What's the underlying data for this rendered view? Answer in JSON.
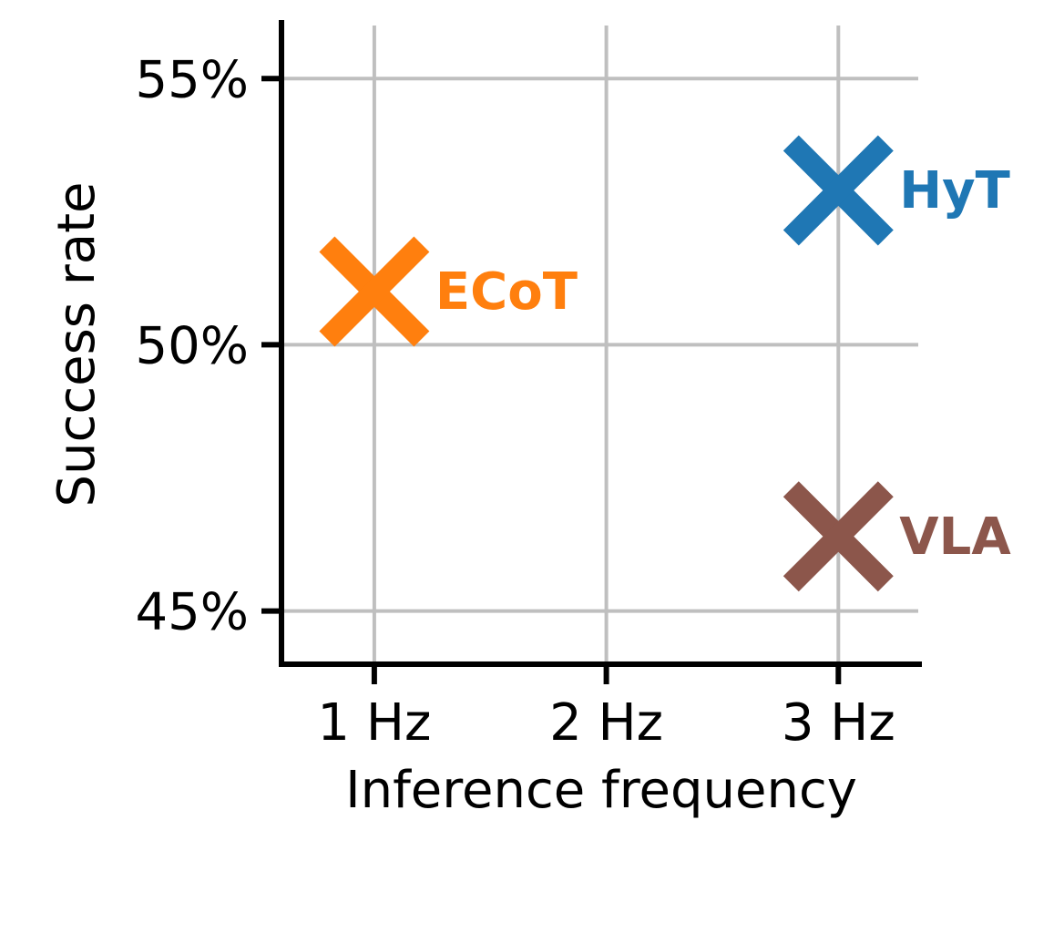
{
  "chart_data": {
    "type": "scatter",
    "xlabel": "Inference frequency",
    "ylabel": "Success rate",
    "x_ticks": [
      {
        "value": 1,
        "label": "1 Hz"
      },
      {
        "value": 2,
        "label": "2 Hz"
      },
      {
        "value": 3,
        "label": "3 Hz"
      }
    ],
    "y_ticks": [
      {
        "value": 45,
        "label": "45%"
      },
      {
        "value": 50,
        "label": "50%"
      },
      {
        "value": 55,
        "label": "55%"
      }
    ],
    "xlim": [
      0.6,
      3.36
    ],
    "ylim": [
      44.0,
      56.1
    ],
    "grid": true,
    "marker": "x",
    "points": [
      {
        "label": "ECoT",
        "x": 1,
        "y": 51.0,
        "color": "#ff7f0e"
      },
      {
        "label": "HyT",
        "x": 3,
        "y": 52.9,
        "color": "#1f77b4"
      },
      {
        "label": "VLA",
        "x": 3,
        "y": 46.4,
        "color": "#8c564b"
      }
    ]
  }
}
